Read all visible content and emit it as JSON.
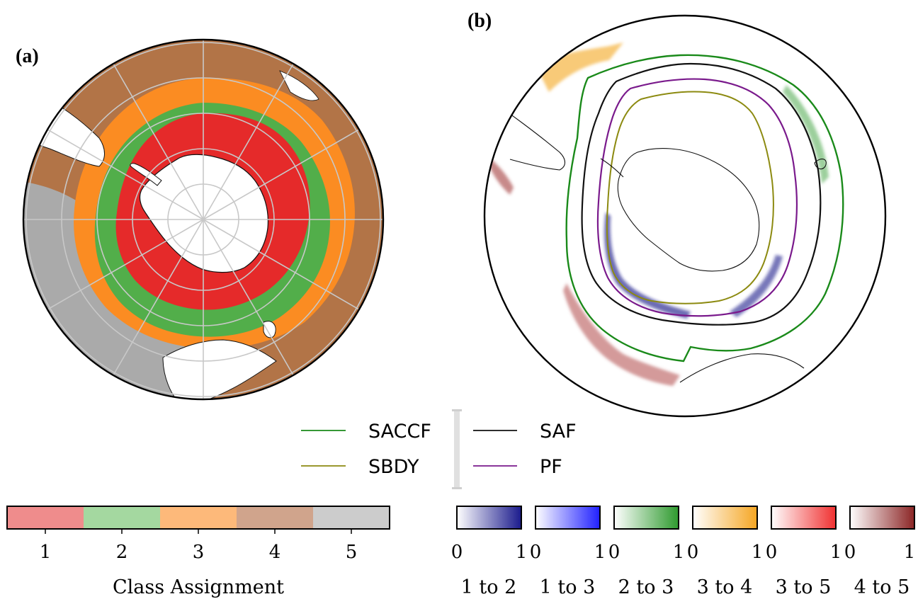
{
  "panels": {
    "a": {
      "label": "(a)"
    },
    "b": {
      "label": "(b)"
    }
  },
  "legend": {
    "fronts": [
      {
        "name": "SACCF",
        "color": "#1a8a1a"
      },
      {
        "name": "SBDY",
        "color": "#8c8a10"
      },
      {
        "name": "SAF",
        "color": "#111111"
      },
      {
        "name": "PF",
        "color": "#7a1a8c"
      }
    ]
  },
  "class_colorbar": {
    "label": "Class Assignment",
    "classes": [
      {
        "value": "1",
        "color": "#ef8c8c"
      },
      {
        "value": "2",
        "color": "#a4d8a0"
      },
      {
        "value": "3",
        "color": "#fdb97a"
      },
      {
        "value": "4",
        "color": "#d0a48c"
      },
      {
        "value": "5",
        "color": "#cccccc"
      }
    ]
  },
  "transition_colorbars": [
    {
      "label": "1 to 2",
      "min": "0",
      "max": "1",
      "color": "#1a1a8c"
    },
    {
      "label": "1 to 3",
      "min": "0",
      "max": "1",
      "color": "#2020ff"
    },
    {
      "label": "2 to 3",
      "min": "0",
      "max": "1",
      "color": "#2e9a2e"
    },
    {
      "label": "3 to 4",
      "min": "0",
      "max": "1",
      "color": "#f5a623"
    },
    {
      "label": "3 to 5",
      "min": "0",
      "max": "1",
      "color": "#f03030"
    },
    {
      "label": "4 to 5",
      "min": "0",
      "max": "1",
      "color": "#8b2525"
    }
  ],
  "map_colors": {
    "class1": "#e52a2a",
    "class2": "#52ae4a",
    "class3": "#fb8c22",
    "class4": "#b27447",
    "class5": "#aaaaaa",
    "land": "#ffffff",
    "grid": "#c8c8c8"
  }
}
